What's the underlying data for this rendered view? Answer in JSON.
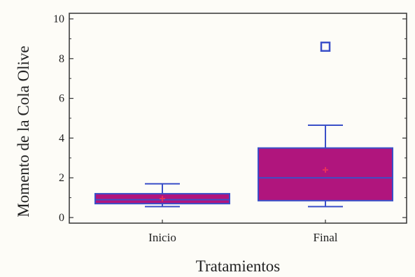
{
  "chart_data": {
    "type": "boxplot",
    "xlabel": "Tratamientos",
    "ylabel": "Momento de la Cola Olive",
    "ylim": [
      -0.3,
      10.2
    ],
    "yticks": [
      0,
      2,
      4,
      6,
      8,
      10
    ],
    "categories": [
      "Inicio",
      "Final"
    ],
    "boxes": [
      {
        "category": "Inicio",
        "whisker_low": 0.55,
        "q1": 0.7,
        "median": 0.9,
        "q3": 1.2,
        "whisker_high": 1.7,
        "mean": 0.95,
        "outliers": []
      },
      {
        "category": "Final",
        "whisker_low": 0.55,
        "q1": 0.85,
        "median": 2.0,
        "q3": 3.5,
        "whisker_high": 4.65,
        "mean": 2.4,
        "outliers": [
          8.6
        ]
      }
    ],
    "box_fill": "#b0157d",
    "line_color": "#3a4fc8",
    "mean_marker_color": "#e8305a",
    "grid": false
  }
}
